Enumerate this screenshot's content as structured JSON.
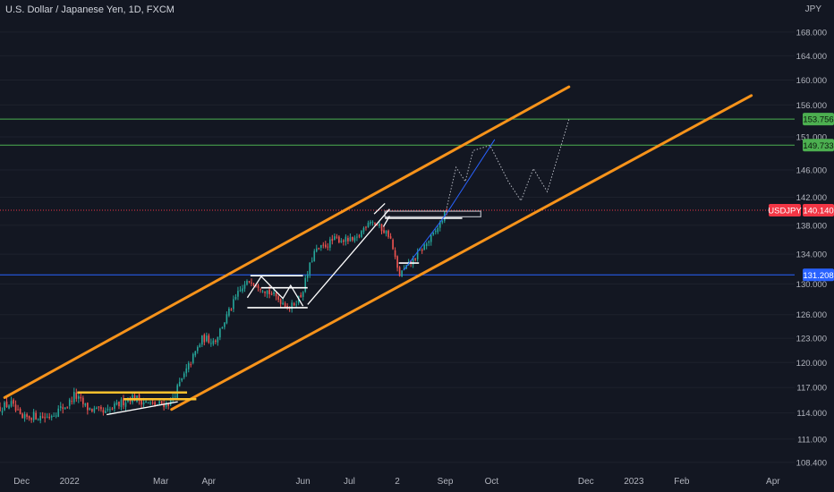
{
  "title": "U.S. Dollar / Japanese Yen, 1D, FXCM",
  "colors": {
    "background": "#131722",
    "up": "#26a69a",
    "down": "#ef5350",
    "channel": "#f7931a",
    "resistance": "#4caf50",
    "support": "#2962ff",
    "annotation": "#ffffff",
    "current": "#f23645",
    "forecast": "#b2b5be",
    "text": "#b2b5be"
  },
  "chart_data": {
    "type": "candlestick",
    "symbol": "USDJPY",
    "price_unit": "JPY",
    "x_range": [
      "2021-11-17",
      "2023-04-15"
    ],
    "y_range": [
      107.6,
      172.8
    ],
    "y_ticks": [
      "108.400",
      "111.000",
      "114.000",
      "117.000",
      "120.000",
      "123.000",
      "126.000",
      "130.000",
      "134.000",
      "138.000",
      "142.000",
      "146.000",
      "151.000",
      "156.000",
      "160.000",
      "164.000",
      "168.000"
    ],
    "x_ticks": [
      {
        "label": "Dec",
        "date": "2021-12-01"
      },
      {
        "label": "2022",
        "date": "2022-01-01"
      },
      {
        "label": "Mar",
        "date": "2022-03-01"
      },
      {
        "label": "Apr",
        "date": "2022-04-01"
      },
      {
        "label": "Jun",
        "date": "2022-06-01"
      },
      {
        "label": "Jul",
        "date": "2022-07-01"
      },
      {
        "label": "2",
        "date": "2022-08-01"
      },
      {
        "label": "Sep",
        "date": "2022-09-01"
      },
      {
        "label": "Oct",
        "date": "2022-10-01"
      },
      {
        "label": "Dec",
        "date": "2022-12-01"
      },
      {
        "label": "2023",
        "date": "2023-01-01"
      },
      {
        "label": "Feb",
        "date": "2023-02-01"
      },
      {
        "label": "Apr",
        "date": "2023-04-01"
      }
    ],
    "price_path": [
      [
        "2021-11-17",
        114.6
      ],
      [
        "2021-11-24",
        115.1
      ],
      [
        "2021-12-01",
        113.2
      ],
      [
        "2021-12-08",
        113.7
      ],
      [
        "2021-12-17",
        113.5
      ],
      [
        "2021-12-31",
        115.0
      ],
      [
        "2022-01-04",
        116.1
      ],
      [
        "2022-01-12",
        114.6
      ],
      [
        "2022-01-24",
        113.9
      ],
      [
        "2022-02-01",
        114.9
      ],
      [
        "2022-02-10",
        115.9
      ],
      [
        "2022-02-24",
        114.9
      ],
      [
        "2022-03-07",
        115.2
      ],
      [
        "2022-03-16",
        118.4
      ],
      [
        "2022-03-28",
        123.0
      ],
      [
        "2022-04-05",
        122.7
      ],
      [
        "2022-04-20",
        128.7
      ],
      [
        "2022-04-28",
        130.6
      ],
      [
        "2022-05-12",
        128.6
      ],
      [
        "2022-05-24",
        126.9
      ],
      [
        "2022-05-31",
        128.6
      ],
      [
        "2022-06-08",
        134.2
      ],
      [
        "2022-06-22",
        136.1
      ],
      [
        "2022-07-05",
        135.8
      ],
      [
        "2022-07-14",
        138.9
      ],
      [
        "2022-07-27",
        136.6
      ],
      [
        "2022-08-02",
        131.1
      ],
      [
        "2022-08-12",
        133.4
      ],
      [
        "2022-08-25",
        136.8
      ],
      [
        "2022-09-02",
        140.1
      ]
    ],
    "candle_count": 200,
    "last_price": "140.140",
    "price_labels": [
      {
        "text": "153.756",
        "value": 153.756,
        "style": "resistance"
      },
      {
        "text": "149.733",
        "value": 149.733,
        "style": "resistance"
      },
      {
        "text": "USDJPY",
        "value": 140.14,
        "style": "current-symbol"
      },
      {
        "text": "140.140",
        "value": 140.14,
        "style": "current"
      },
      {
        "text": "131.208",
        "value": 131.208,
        "style": "support"
      }
    ],
    "horizontal_lines": [
      {
        "value": 153.756,
        "style": "resistance"
      },
      {
        "value": 149.733,
        "style": "resistance"
      },
      {
        "value": 140.14,
        "style": "current-dotted"
      },
      {
        "value": 131.208,
        "style": "support"
      }
    ],
    "channel": {
      "upper": [
        [
          "2021-11-20",
          115.8
        ],
        [
          "2022-11-20",
          158.9
        ]
      ],
      "lower": [
        [
          "2022-03-08",
          114.4
        ],
        [
          "2023-03-18",
          157.5
        ]
      ]
    },
    "annotations": {
      "yellow_lines": [
        {
          "from": "2022-01-06",
          "to": "2022-03-18",
          "value": 116.4
        },
        {
          "from": "2022-02-05",
          "to": "2022-03-24",
          "value": 115.6
        }
      ],
      "white_levels": [
        {
          "from": "2022-04-28",
          "to": "2022-06-01",
          "value": 131.1
        },
        {
          "from": "2022-05-05",
          "to": "2022-06-04",
          "value": 129.5
        },
        {
          "from": "2022-04-26",
          "to": "2022-06-04",
          "value": 126.9
        },
        {
          "from": "2022-07-24",
          "to": "2022-09-12",
          "value": 139.0
        },
        {
          "from": "2022-08-02",
          "to": "2022-08-15",
          "value": 132.8
        }
      ],
      "white_lines": [
        [
          [
            "2022-01-25",
            113.8
          ],
          [
            "2022-03-12",
            115.3
          ]
        ],
        [
          [
            "2022-04-26",
            128.2
          ],
          [
            "2022-05-05",
            131.0
          ],
          [
            "2022-05-19",
            128.1
          ],
          [
            "2022-05-24",
            129.8
          ],
          [
            "2022-06-01",
            127.1
          ]
        ],
        [
          [
            "2022-06-04",
            127.3
          ],
          [
            "2022-07-27",
            140.3
          ]
        ],
        [
          [
            "2022-07-17",
            139.6
          ],
          [
            "2022-07-24",
            141.1
          ]
        ],
        [
          [
            "2022-07-23",
            137.8
          ],
          [
            "2022-07-27",
            139.3
          ]
        ]
      ],
      "gray_box": {
        "from": "2022-07-24",
        "to": "2022-09-24",
        "low": 139.2,
        "high": 140.0
      },
      "blue_line": [
        [
          "2022-08-05",
          131.8
        ],
        [
          "2022-09-02",
          139.7
        ],
        [
          "2022-10-03",
          150.6
        ]
      ],
      "forecast_path": [
        [
          "2022-09-02",
          140.5
        ],
        [
          "2022-09-08",
          146.4
        ],
        [
          "2022-09-14",
          144.3
        ],
        [
          "2022-09-19",
          148.9
        ],
        [
          "2022-09-30",
          149.7
        ],
        [
          "2022-10-12",
          144.2
        ],
        [
          "2022-10-20",
          141.5
        ],
        [
          "2022-10-28",
          146.2
        ],
        [
          "2022-11-06",
          142.8
        ],
        [
          "2022-11-20",
          153.7
        ]
      ]
    }
  }
}
